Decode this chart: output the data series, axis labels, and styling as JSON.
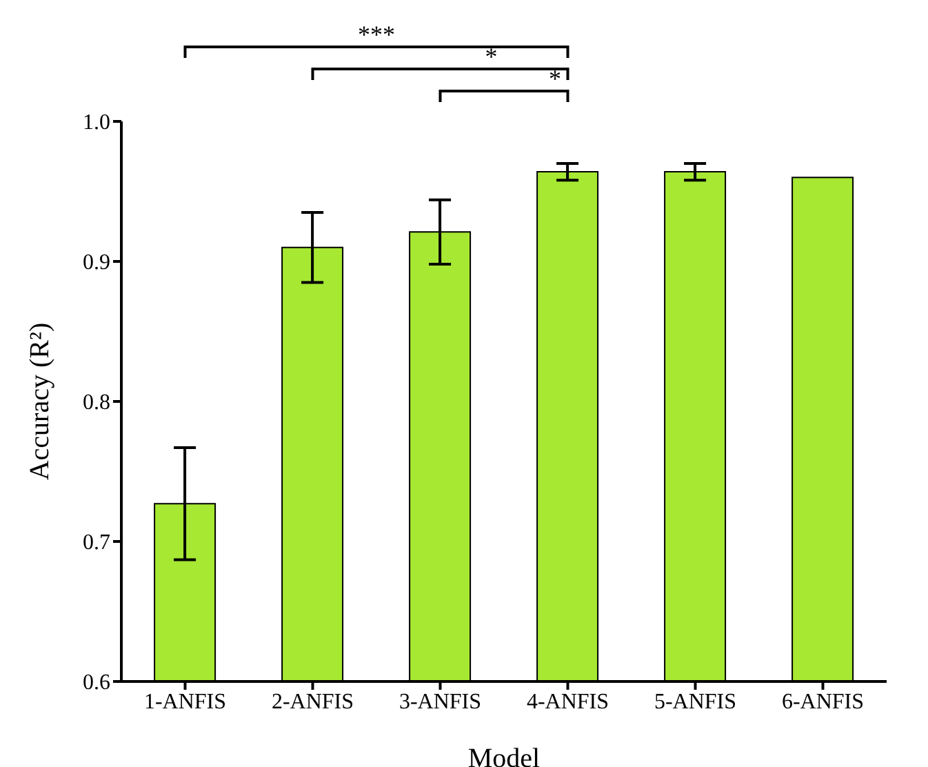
{
  "chart_data": {
    "type": "bar",
    "xlabel": "Model",
    "ylabel": "Accuracy (R²)",
    "categories": [
      "1-ANFIS",
      "2-ANFIS",
      "3-ANFIS",
      "4-ANFIS",
      "5-ANFIS",
      "6-ANFIS"
    ],
    "values": [
      0.727,
      0.91,
      0.921,
      0.964,
      0.964,
      0.96
    ],
    "errors": [
      0.04,
      0.025,
      0.023,
      0.006,
      0.006,
      null
    ],
    "color": "#a6e832",
    "ylim": [
      0.6,
      1.0
    ],
    "yticks": [
      0.6,
      0.7,
      0.8,
      0.9,
      {
        "value": 1,
        "label": "1.0"
      }
    ],
    "annotations": [
      "***",
      "*",
      "*"
    ],
    "grid": false,
    "legend": false
  }
}
